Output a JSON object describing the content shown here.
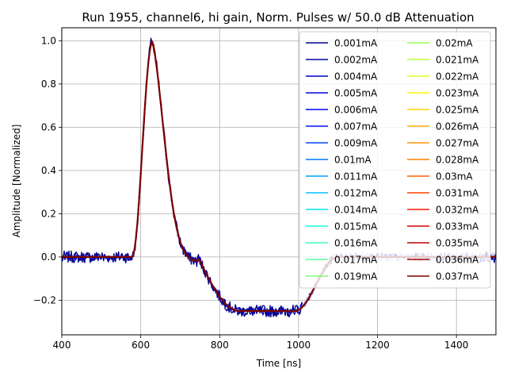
{
  "chart_data": {
    "type": "line",
    "title": "Run 1955, channel6, hi gain, Norm. Pulses w/ 50.0 dB Attenuation",
    "xlabel": "Time [ns]",
    "ylabel": "Amplitude [Normalized]",
    "xlim": [
      400,
      1500
    ],
    "ylim": [
      -0.36,
      1.06
    ],
    "xticks": [
      400,
      600,
      800,
      1000,
      1200,
      1400
    ],
    "yticks": [
      -0.2,
      0.0,
      0.2,
      0.4,
      0.6,
      0.8,
      1.0
    ],
    "xtick_labels": [
      "400",
      "600",
      "800",
      "1000",
      "1200",
      "1400"
    ],
    "ytick_labels": [
      "−0.2",
      "0.0",
      "0.2",
      "0.4",
      "0.6",
      "0.8",
      "1.0"
    ],
    "grid": true,
    "legend_position": "top-right",
    "legend_columns": 2,
    "pulse_shape": {
      "baseline": 0.0,
      "onset_ns": 578,
      "peak_ns": 630,
      "peak_value": 1.0,
      "undershoot_min": -0.25,
      "undershoot_plateau_ns": [
        850,
        990
      ],
      "recovery_end_ns": 1100
    },
    "series": [
      {
        "name": "0.001mA",
        "color": "#00008f"
      },
      {
        "name": "0.002mA",
        "color": "#0000a8"
      },
      {
        "name": "0.004mA",
        "color": "#0000c4"
      },
      {
        "name": "0.005mA",
        "color": "#0000dd"
      },
      {
        "name": "0.006mA",
        "color": "#0000f6"
      },
      {
        "name": "0.007mA",
        "color": "#0018ff"
      },
      {
        "name": "0.009mA",
        "color": "#0044ff"
      },
      {
        "name": "0.01mA",
        "color": "#0074ff"
      },
      {
        "name": "0.011mA",
        "color": "#009cff"
      },
      {
        "name": "0.012mA",
        "color": "#00c0ff"
      },
      {
        "name": "0.014mA",
        "color": "#00e4f8"
      },
      {
        "name": "0.015mA",
        "color": "#1cffdb"
      },
      {
        "name": "0.016mA",
        "color": "#3cffba"
      },
      {
        "name": "0.017mA",
        "color": "#5cff9a"
      },
      {
        "name": "0.019mA",
        "color": "#7cff79"
      },
      {
        "name": "0.02mA",
        "color": "#9cff5a"
      },
      {
        "name": "0.021mA",
        "color": "#bcff3a"
      },
      {
        "name": "0.022mA",
        "color": "#d8ff1e"
      },
      {
        "name": "0.023mA",
        "color": "#f8f500"
      },
      {
        "name": "0.025mA",
        "color": "#ffd400"
      },
      {
        "name": "0.026mA",
        "color": "#ffb000"
      },
      {
        "name": "0.027mA",
        "color": "#ff9800"
      },
      {
        "name": "0.028mA",
        "color": "#ff8000"
      },
      {
        "name": "0.03mA",
        "color": "#ff6000"
      },
      {
        "name": "0.031mA",
        "color": "#ff4000"
      },
      {
        "name": "0.032mA",
        "color": "#f61800"
      },
      {
        "name": "0.033mA",
        "color": "#d80000"
      },
      {
        "name": "0.035mA",
        "color": "#c00000"
      },
      {
        "name": "0.036mA",
        "color": "#a40000"
      },
      {
        "name": "0.037mA",
        "color": "#800000"
      }
    ]
  }
}
